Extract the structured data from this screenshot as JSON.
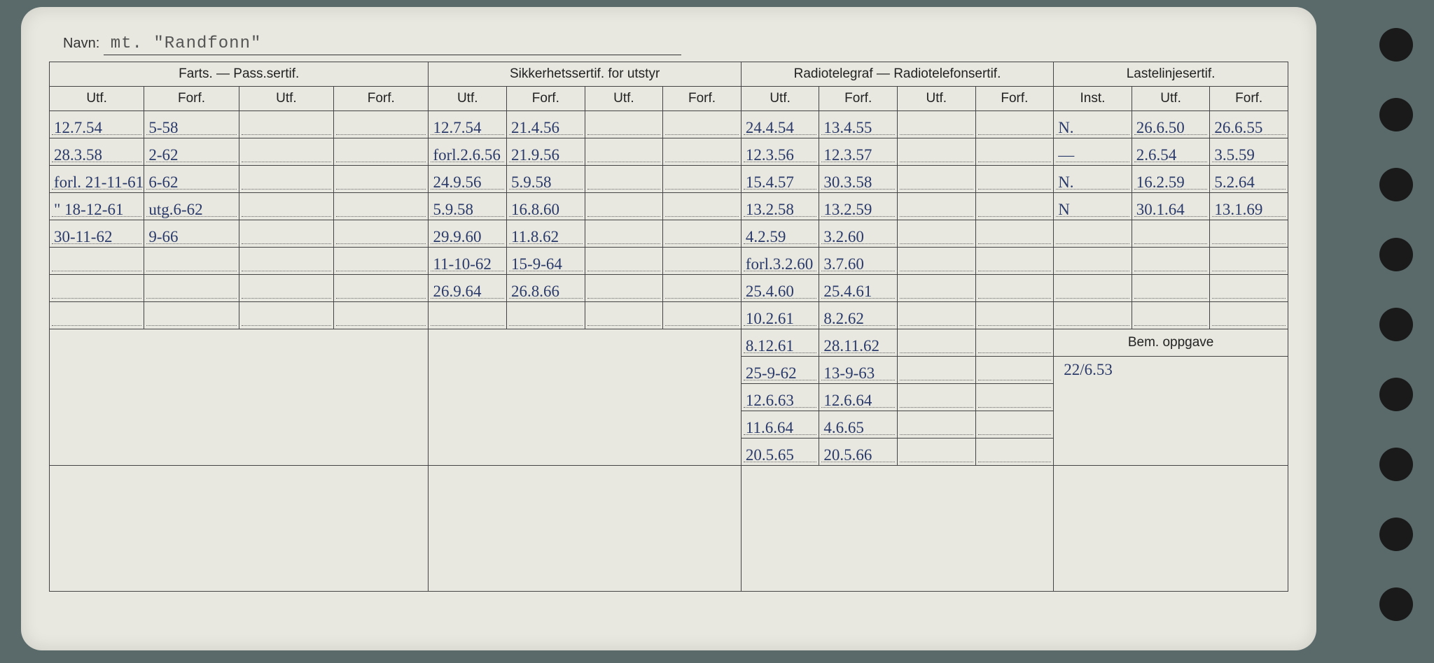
{
  "labels": {
    "navn": "Navn:",
    "farts": "Farts. — Pass.sertif.",
    "sikker": "Sikkerhetssertif. for utstyr",
    "radio": "Radiotelegraf — Radiotelefonsertif.",
    "laste": "Lastelinjesertif.",
    "utf": "Utf.",
    "forf": "Forf.",
    "inst": "Inst.",
    "bem": "Bem. oppgave"
  },
  "navn_value": "mt. \"Randfonn\"",
  "colors": {
    "card_bg": "#e8e8e0",
    "ink": "#2a3a6a",
    "print": "#222",
    "page_bg": "#5a6a6a"
  },
  "rows": [
    {
      "f1": "12.7.54",
      "f2": "5-58",
      "f3": "",
      "f4": "",
      "s1": "12.7.54",
      "s2": "21.4.56",
      "s3": "",
      "s4": "",
      "r1": "24.4.54",
      "r2": "13.4.55",
      "r3": "",
      "r4": "",
      "l1": "N.",
      "l2": "26.6.50",
      "l3": "26.6.55"
    },
    {
      "f1": "28.3.58",
      "f2": "2-62",
      "f3": "",
      "f4": "",
      "s1": "forl.2.6.56",
      "s2": "21.9.56",
      "s3": "",
      "s4": "",
      "r1": "12.3.56",
      "r2": "12.3.57",
      "r3": "",
      "r4": "",
      "l1": "—",
      "l2": "2.6.54",
      "l3": "3.5.59"
    },
    {
      "f1": "forl. 21-11-61",
      "f2": "6-62",
      "f3": "",
      "f4": "",
      "s1": "24.9.56",
      "s2": "5.9.58",
      "s3": "",
      "s4": "",
      "r1": "15.4.57",
      "r2": "30.3.58",
      "r3": "",
      "r4": "",
      "l1": "N.",
      "l2": "16.2.59",
      "l3": "5.2.64"
    },
    {
      "f1": "\" 18-12-61",
      "f2": "utg.6-62",
      "f3": "",
      "f4": "",
      "s1": "5.9.58",
      "s2": "16.8.60",
      "s3": "",
      "s4": "",
      "r1": "13.2.58",
      "r2": "13.2.59",
      "r3": "",
      "r4": "",
      "l1": "N",
      "l2": "30.1.64",
      "l3": "13.1.69"
    },
    {
      "f1": "30-11-62",
      "f2": "9-66",
      "f3": "",
      "f4": "",
      "s1": "29.9.60",
      "s2": "11.8.62",
      "s3": "",
      "s4": "",
      "r1": "4.2.59",
      "r2": "3.2.60",
      "r3": "",
      "r4": "",
      "l1": "",
      "l2": "",
      "l3": ""
    },
    {
      "f1": "",
      "f2": "",
      "f3": "",
      "f4": "",
      "s1": "11-10-62",
      "s2": "15-9-64",
      "s3": "",
      "s4": "",
      "r1": "forl.3.2.60",
      "r2": "3.7.60",
      "r3": "",
      "r4": "",
      "l1": "",
      "l2": "",
      "l3": ""
    },
    {
      "f1": "",
      "f2": "",
      "f3": "",
      "f4": "",
      "s1": "26.9.64",
      "s2": "26.8.66",
      "s3": "",
      "s4": "",
      "r1": "25.4.60",
      "r2": "25.4.61",
      "r3": "",
      "r4": "",
      "l1": "",
      "l2": "",
      "l3": ""
    },
    {
      "f1": "",
      "f2": "",
      "f3": "",
      "f4": "",
      "s1": "",
      "s2": "",
      "s3": "",
      "s4": "",
      "r1": "10.2.61",
      "r2": "8.2.62",
      "r3": "",
      "r4": "",
      "l1": "",
      "l2": "",
      "l3": ""
    }
  ],
  "rows_lower": [
    {
      "r1": "8.12.61",
      "r2": "28.11.62",
      "r3": "",
      "r4": ""
    },
    {
      "r1": "25-9-62",
      "r2": "13-9-63",
      "r3": "",
      "r4": ""
    },
    {
      "r1": "12.6.63",
      "r2": "12.6.64",
      "r3": "",
      "r4": ""
    },
    {
      "r1": "11.6.64",
      "r2": "4.6.65",
      "r3": "",
      "r4": ""
    },
    {
      "r1": "20.5.65",
      "r2": "20.5.66",
      "r3": "",
      "r4": ""
    }
  ],
  "bem_value": "22/6.53"
}
